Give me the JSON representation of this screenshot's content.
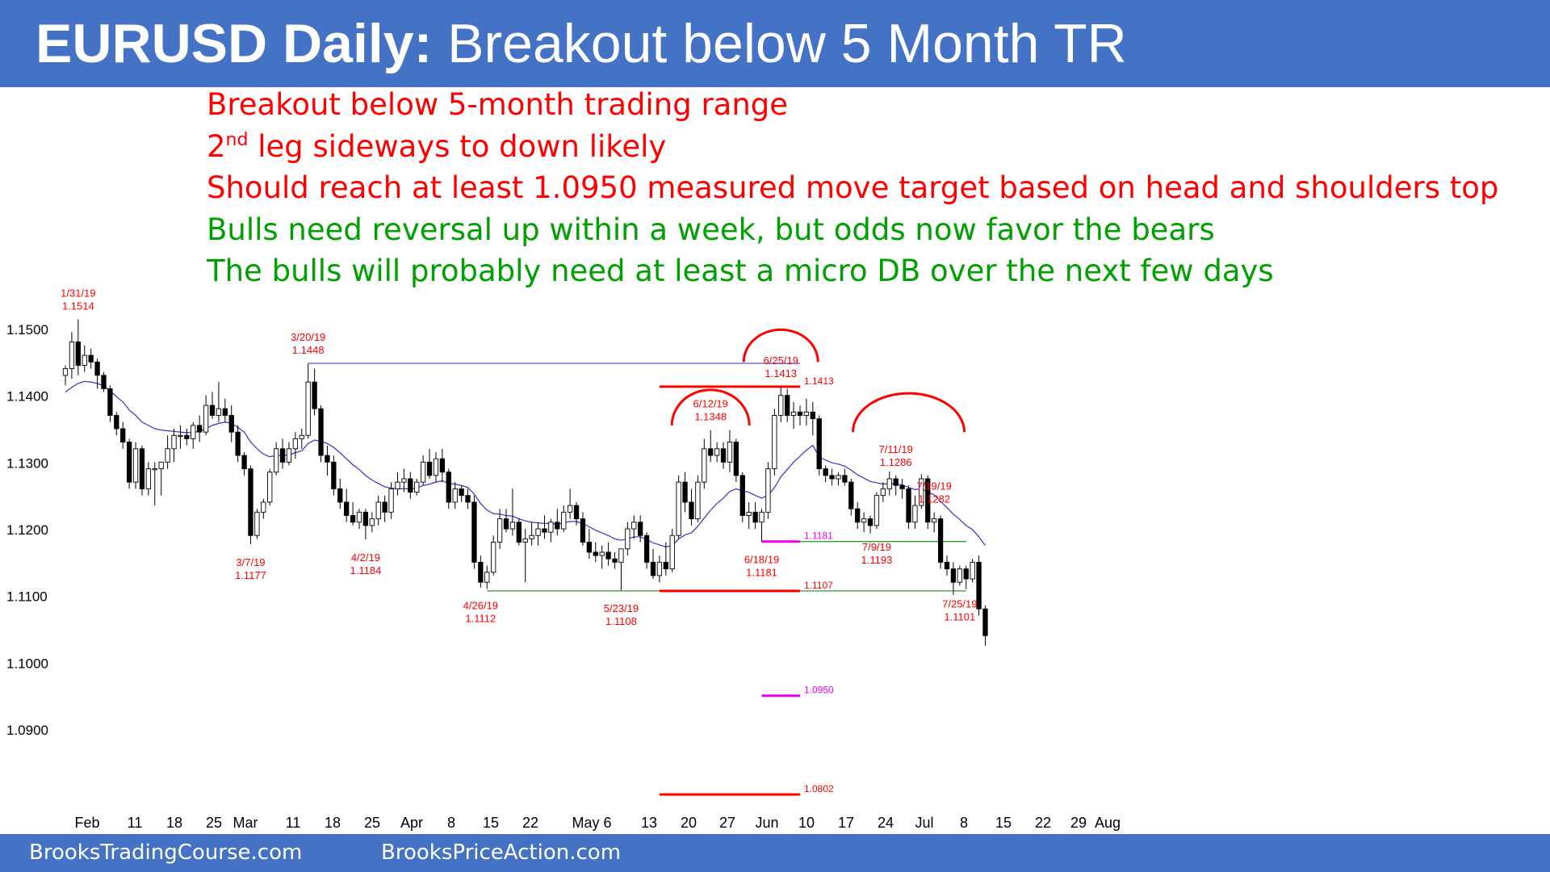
{
  "header": {
    "title_bold": "EURUSD Daily:",
    "title_rest": "Breakout below 5 Month TR"
  },
  "notes": {
    "line1": "Breakout below 5-month trading range",
    "line2_prefix": "2",
    "line2_sup": "nd",
    "line2_rest": " leg sideways to down likely",
    "line3": "Should reach at least 1.0950 measured move target based on head and shoulders top",
    "line4": "Bulls need reversal up within a week, but odds now favor the bears",
    "line5": "The bulls will probably need at least a micro DB over the next few days"
  },
  "footer": {
    "left": "BrooksTradingCourse.com",
    "right": "BrooksPriceAction.com"
  },
  "colors": {
    "header_bg": "#4472c4",
    "annotation_red": "#ff0000",
    "annotation_green": "#00a000",
    "ema": "#3333cc",
    "support_line": "#2e9e2e",
    "resistance_line": "#5555dd",
    "target_magenta": "#ee00ee"
  },
  "chart_data": {
    "type": "candlestick",
    "title": "EURUSD Daily",
    "ylim": [
      1.078,
      1.153
    ],
    "y_ticks": [
      "1.1500",
      "1.1400",
      "1.1300",
      "1.1200",
      "1.1100",
      "1.1000",
      "1.0900"
    ],
    "x_ticks": [
      "Feb",
      "11",
      "18",
      "25",
      "Mar",
      "11",
      "18",
      "25",
      "Apr",
      "8",
      "15",
      "22",
      "May 6",
      "13",
      "20",
      "27",
      "Jun",
      "10",
      "17",
      "24",
      "Jul",
      "8",
      "15",
      "22",
      "29",
      "Aug"
    ],
    "candles": [
      [
        1.143,
        1.1445,
        1.1415,
        1.144
      ],
      [
        1.144,
        1.1495,
        1.1425,
        1.148
      ],
      [
        1.148,
        1.1514,
        1.143,
        1.1445
      ],
      [
        1.1445,
        1.1475,
        1.1435,
        1.146
      ],
      [
        1.146,
        1.147,
        1.144,
        1.145
      ],
      [
        1.145,
        1.1455,
        1.141,
        1.143
      ],
      [
        1.143,
        1.1435,
        1.1405,
        1.141
      ],
      [
        1.141,
        1.1415,
        1.136,
        1.137
      ],
      [
        1.137,
        1.1375,
        1.134,
        1.135
      ],
      [
        1.135,
        1.136,
        1.132,
        1.133
      ],
      [
        1.133,
        1.1335,
        1.126,
        1.127
      ],
      [
        1.127,
        1.133,
        1.126,
        1.132
      ],
      [
        1.132,
        1.1325,
        1.125,
        1.126
      ],
      [
        1.126,
        1.13,
        1.125,
        1.129
      ],
      [
        1.129,
        1.13,
        1.1235,
        1.129
      ],
      [
        1.129,
        1.13,
        1.125,
        1.13
      ],
      [
        1.13,
        1.134,
        1.129,
        1.132
      ],
      [
        1.132,
        1.135,
        1.13,
        1.134
      ],
      [
        1.134,
        1.1355,
        1.132,
        1.134
      ],
      [
        1.134,
        1.135,
        1.1325,
        1.1335
      ],
      [
        1.1335,
        1.136,
        1.132,
        1.1355
      ],
      [
        1.1355,
        1.137,
        1.133,
        1.1345
      ],
      [
        1.1345,
        1.14,
        1.134,
        1.1385
      ],
      [
        1.1385,
        1.1405,
        1.1365,
        1.137
      ],
      [
        1.137,
        1.142,
        1.136,
        1.138
      ],
      [
        1.138,
        1.1395,
        1.136,
        1.137
      ],
      [
        1.137,
        1.1385,
        1.133,
        1.1345
      ],
      [
        1.1345,
        1.1355,
        1.13,
        1.131
      ],
      [
        1.131,
        1.1315,
        1.128,
        1.129
      ],
      [
        1.129,
        1.1295,
        1.1177,
        1.119
      ],
      [
        1.119,
        1.123,
        1.1185,
        1.1225
      ],
      [
        1.1225,
        1.1245,
        1.1215,
        1.124
      ],
      [
        1.124,
        1.129,
        1.1235,
        1.1285
      ],
      [
        1.1285,
        1.133,
        1.128,
        1.132
      ],
      [
        1.132,
        1.1335,
        1.129,
        1.13
      ],
      [
        1.13,
        1.133,
        1.1295,
        1.132
      ],
      [
        1.132,
        1.1345,
        1.1305,
        1.1335
      ],
      [
        1.1335,
        1.135,
        1.132,
        1.134
      ],
      [
        1.134,
        1.1448,
        1.1335,
        1.142
      ],
      [
        1.142,
        1.144,
        1.137,
        1.138
      ],
      [
        1.138,
        1.1385,
        1.13,
        1.131
      ],
      [
        1.131,
        1.1325,
        1.128,
        1.13
      ],
      [
        1.13,
        1.131,
        1.125,
        1.126
      ],
      [
        1.126,
        1.1275,
        1.123,
        1.124
      ],
      [
        1.124,
        1.126,
        1.121,
        1.122
      ],
      [
        1.122,
        1.124,
        1.1205,
        1.121
      ],
      [
        1.121,
        1.123,
        1.12,
        1.1225
      ],
      [
        1.1225,
        1.123,
        1.1184,
        1.1205
      ],
      [
        1.1205,
        1.1225,
        1.1195,
        1.1215
      ],
      [
        1.1215,
        1.125,
        1.1205,
        1.124
      ],
      [
        1.124,
        1.125,
        1.121,
        1.1225
      ],
      [
        1.1225,
        1.127,
        1.1215,
        1.126
      ],
      [
        1.126,
        1.1285,
        1.125,
        1.127
      ],
      [
        1.127,
        1.129,
        1.1255,
        1.1275
      ],
      [
        1.1275,
        1.1285,
        1.1245,
        1.1255
      ],
      [
        1.1255,
        1.1275,
        1.125,
        1.127
      ],
      [
        1.127,
        1.131,
        1.1265,
        1.13
      ],
      [
        1.13,
        1.132,
        1.1275,
        1.128
      ],
      [
        1.128,
        1.1315,
        1.127,
        1.1305
      ],
      [
        1.1305,
        1.132,
        1.127,
        1.1285
      ],
      [
        1.1285,
        1.129,
        1.123,
        1.124
      ],
      [
        1.124,
        1.127,
        1.123,
        1.126
      ],
      [
        1.126,
        1.1265,
        1.124,
        1.125
      ],
      [
        1.125,
        1.126,
        1.123,
        1.124
      ],
      [
        1.124,
        1.125,
        1.114,
        1.115
      ],
      [
        1.115,
        1.116,
        1.1112,
        1.112
      ],
      [
        1.112,
        1.1145,
        1.111,
        1.1135
      ],
      [
        1.1135,
        1.119,
        1.113,
        1.118
      ],
      [
        1.118,
        1.123,
        1.117,
        1.1215
      ],
      [
        1.1215,
        1.123,
        1.1195,
        1.12
      ],
      [
        1.12,
        1.126,
        1.119,
        1.121
      ],
      [
        1.121,
        1.1215,
        1.1175,
        1.118
      ],
      [
        1.118,
        1.12,
        1.112,
        1.1185
      ],
      [
        1.1185,
        1.121,
        1.1175,
        1.119
      ],
      [
        1.119,
        1.121,
        1.1175,
        1.12
      ],
      [
        1.12,
        1.122,
        1.1185,
        1.1195
      ],
      [
        1.1195,
        1.1215,
        1.118,
        1.121
      ],
      [
        1.121,
        1.123,
        1.119,
        1.12
      ],
      [
        1.12,
        1.1235,
        1.1195,
        1.1225
      ],
      [
        1.1225,
        1.126,
        1.1215,
        1.1235
      ],
      [
        1.1235,
        1.124,
        1.1205,
        1.1215
      ],
      [
        1.1215,
        1.1225,
        1.1175,
        1.118
      ],
      [
        1.118,
        1.12,
        1.1155,
        1.1165
      ],
      [
        1.1165,
        1.118,
        1.115,
        1.116
      ],
      [
        1.116,
        1.1175,
        1.114,
        1.1165
      ],
      [
        1.1165,
        1.118,
        1.1145,
        1.1155
      ],
      [
        1.1155,
        1.1165,
        1.114,
        1.115
      ],
      [
        1.115,
        1.117,
        1.1108,
        1.117
      ],
      [
        1.117,
        1.121,
        1.116,
        1.12
      ],
      [
        1.12,
        1.122,
        1.1185,
        1.121
      ],
      [
        1.121,
        1.122,
        1.118,
        1.119
      ],
      [
        1.119,
        1.1195,
        1.114,
        1.115
      ],
      [
        1.115,
        1.117,
        1.1125,
        1.113
      ],
      [
        1.113,
        1.116,
        1.112,
        1.115
      ],
      [
        1.115,
        1.118,
        1.113,
        1.114
      ],
      [
        1.114,
        1.12,
        1.1135,
        1.119
      ],
      [
        1.119,
        1.128,
        1.1185,
        1.127
      ],
      [
        1.127,
        1.1285,
        1.1225,
        1.124
      ],
      [
        1.124,
        1.126,
        1.1205,
        1.1215
      ],
      [
        1.1215,
        1.128,
        1.121,
        1.127
      ],
      [
        1.127,
        1.1335,
        1.126,
        1.132
      ],
      [
        1.132,
        1.1348,
        1.13,
        1.131
      ],
      [
        1.131,
        1.133,
        1.13,
        1.132
      ],
      [
        1.132,
        1.133,
        1.129,
        1.13
      ],
      [
        1.13,
        1.1348,
        1.1285,
        1.133
      ],
      [
        1.133,
        1.1335,
        1.127,
        1.128
      ],
      [
        1.128,
        1.1285,
        1.121,
        1.122
      ],
      [
        1.122,
        1.124,
        1.12,
        1.1225
      ],
      [
        1.1225,
        1.124,
        1.12,
        1.121
      ],
      [
        1.121,
        1.123,
        1.1181,
        1.1225
      ],
      [
        1.1225,
        1.13,
        1.1215,
        1.129
      ],
      [
        1.129,
        1.138,
        1.128,
        1.137
      ],
      [
        1.137,
        1.1413,
        1.136,
        1.14
      ],
      [
        1.14,
        1.141,
        1.136,
        1.137
      ],
      [
        1.137,
        1.139,
        1.135,
        1.1375
      ],
      [
        1.1375,
        1.1385,
        1.1355,
        1.137
      ],
      [
        1.137,
        1.1395,
        1.1355,
        1.1375
      ],
      [
        1.1375,
        1.139,
        1.134,
        1.1365
      ],
      [
        1.1365,
        1.137,
        1.128,
        1.129
      ],
      [
        1.129,
        1.1295,
        1.127,
        1.128
      ],
      [
        1.128,
        1.129,
        1.1265,
        1.1275
      ],
      [
        1.1275,
        1.1285,
        1.1265,
        1.128
      ],
      [
        1.128,
        1.129,
        1.1265,
        1.127
      ],
      [
        1.127,
        1.1275,
        1.122,
        1.123
      ],
      [
        1.123,
        1.124,
        1.12,
        1.121
      ],
      [
        1.121,
        1.1225,
        1.1195,
        1.1215
      ],
      [
        1.1215,
        1.122,
        1.1193,
        1.1205
      ],
      [
        1.1205,
        1.1255,
        1.12,
        1.125
      ],
      [
        1.125,
        1.127,
        1.124,
        1.126
      ],
      [
        1.126,
        1.1286,
        1.125,
        1.1275
      ],
      [
        1.1275,
        1.128,
        1.125,
        1.1265
      ],
      [
        1.1265,
        1.1275,
        1.1245,
        1.126
      ],
      [
        1.126,
        1.1265,
        1.12,
        1.121
      ],
      [
        1.121,
        1.125,
        1.12,
        1.1235
      ],
      [
        1.1235,
        1.1282,
        1.123,
        1.1275
      ],
      [
        1.1275,
        1.128,
        1.12,
        1.121
      ],
      [
        1.121,
        1.1225,
        1.1195,
        1.1215
      ],
      [
        1.1215,
        1.122,
        1.114,
        1.115
      ],
      [
        1.115,
        1.116,
        1.113,
        1.114
      ],
      [
        1.114,
        1.115,
        1.1101,
        1.112
      ],
      [
        1.112,
        1.1145,
        1.1115,
        1.114
      ],
      [
        1.114,
        1.1145,
        1.111,
        1.1125
      ],
      [
        1.1125,
        1.1155,
        1.112,
        1.115
      ],
      [
        1.115,
        1.116,
        1.107,
        1.108
      ],
      [
        1.108,
        1.1085,
        1.1025,
        1.104
      ]
    ],
    "ema_20": [
      1.1405,
      1.1412,
      1.1418,
      1.1421,
      1.142,
      1.1418,
      1.1414,
      1.1407,
      1.1398,
      1.139,
      1.1378,
      1.137,
      1.136,
      1.1355,
      1.135,
      1.1348,
      1.1347,
      1.1346,
      1.1345,
      1.1344,
      1.1345,
      1.1346,
      1.135,
      1.1355,
      1.1358,
      1.136,
      1.1358,
      1.1352,
      1.1345,
      1.133,
      1.132,
      1.1312,
      1.1308,
      1.131,
      1.131,
      1.1311,
      1.1314,
      1.1317,
      1.1328,
      1.1333,
      1.1331,
      1.1328,
      1.1322,
      1.1314,
      1.1305,
      1.1296,
      1.1289,
      1.128,
      1.1273,
      1.1268,
      1.1263,
      1.1261,
      1.126,
      1.126,
      1.126,
      1.1261,
      1.1265,
      1.1267,
      1.127,
      1.1272,
      1.1268,
      1.1267,
      1.1265,
      1.1262,
      1.1252,
      1.1238,
      1.1228,
      1.1223,
      1.1222,
      1.122,
      1.1219,
      1.1215,
      1.1212,
      1.121,
      1.1209,
      1.1208,
      1.1208,
      1.1207,
      1.1209,
      1.1211,
      1.1211,
      1.1208,
      1.1203,
      1.1198,
      1.1194,
      1.119,
      1.1185,
      1.1183,
      1.1185,
      1.1188,
      1.1188,
      1.1184,
      1.1179,
      1.1176,
      1.1173,
      1.1175,
      1.1185,
      1.1191,
      1.1194,
      1.1204,
      1.1216,
      1.1228,
      1.1238,
      1.1246,
      1.1256,
      1.126,
      1.1257,
      1.1255,
      1.125,
      1.1246,
      1.125,
      1.1262,
      1.1278,
      1.1289,
      1.13,
      1.1309,
      1.1318,
      1.1325,
      1.1308,
      1.1303,
      1.1299,
      1.1297,
      1.1294,
      1.1288,
      1.1281,
      1.1276,
      1.1271,
      1.1269,
      1.1267,
      1.1268,
      1.1267,
      1.1266,
      1.1262,
      1.1259,
      1.126,
      1.1255,
      1.1251,
      1.1241,
      1.1232,
      1.1222,
      1.1214,
      1.1205,
      1.1199,
      1.1188,
      1.1175
    ],
    "horizontal_lines": [
      {
        "price": 1.1448,
        "from_bar": 38,
        "to_bar": 115,
        "color": "resistance"
      },
      {
        "price": 1.1413,
        "from_bar": 93,
        "to_bar": 115,
        "color": "red"
      },
      {
        "price": 1.1181,
        "from_bar": 109,
        "to_bar": 115,
        "color": "magenta"
      },
      {
        "price": 1.1181,
        "from_bar": 115,
        "to_bar": 141,
        "color": "support"
      },
      {
        "price": 1.1107,
        "from_bar": 66,
        "to_bar": 141,
        "color": "support"
      },
      {
        "price": 1.1107,
        "from_bar": 93,
        "to_bar": 115,
        "color": "red"
      },
      {
        "price": 1.095,
        "from_bar": 109,
        "to_bar": 115,
        "color": "magenta"
      },
      {
        "price": 1.0802,
        "from_bar": 93,
        "to_bar": 115,
        "color": "red"
      }
    ],
    "annotations": [
      {
        "date": "1/31/19",
        "price": "1.1514",
        "bar": 2,
        "pos": "above"
      },
      {
        "date": "3/20/19",
        "price": "1.1448",
        "bar": 38,
        "pos": "above"
      },
      {
        "date": "6/12/19",
        "price": "1.1348",
        "bar": 101,
        "pos": "above"
      },
      {
        "date": "6/25/19",
        "price": "1.1413",
        "bar": 112,
        "pos": "above"
      },
      {
        "date": "7/11/19",
        "price": "1.1286",
        "bar": 130,
        "pos": "above"
      },
      {
        "date": "7/19/19",
        "price": "1.1282",
        "bar": 136,
        "pos": "above"
      },
      {
        "date": "3/7/19",
        "price": "1.1177",
        "bar": 29,
        "pos": "below"
      },
      {
        "date": "4/2/19",
        "price": "1.1184",
        "bar": 47,
        "pos": "below"
      },
      {
        "date": "4/26/19",
        "price": "1.1112",
        "bar": 65,
        "pos": "below"
      },
      {
        "date": "5/23/19",
        "price": "1.1108",
        "bar": 87,
        "pos": "below"
      },
      {
        "date": "6/18/19",
        "price": "1.1181",
        "bar": 109,
        "pos": "below"
      },
      {
        "date": "7/9/19",
        "price": "1.1193",
        "bar": 127,
        "pos": "below"
      },
      {
        "date": "7/25/19",
        "price": "1.1101",
        "bar": 140,
        "pos": "below"
      }
    ],
    "line_labels": [
      "1.1413",
      "1.1181",
      "1.1107",
      "1.0950",
      "1.0802"
    ]
  }
}
